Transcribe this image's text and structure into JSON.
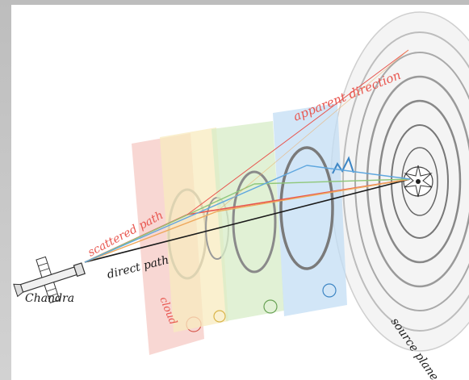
{
  "labels": {
    "apparent_direction": "apparent direction",
    "scattered_path": "scattered path",
    "direct_path": "direct path",
    "satellite": "Chandra",
    "cloud": "cloud",
    "source_plane": "source plane"
  },
  "colors": {
    "background": "#c9c9c9",
    "panel": "#ffffff",
    "red": "#e8564f",
    "orange": "#eea85c",
    "yellow": "#e9d46a",
    "green": "#8fc77a",
    "blue": "#5fa7df",
    "black": "#1a1a1a",
    "red_plane": "#f6c9c4",
    "yellow_plane": "#f8ebbf",
    "green_plane": "#d7ecc7",
    "blue_plane": "#c3def4"
  }
}
